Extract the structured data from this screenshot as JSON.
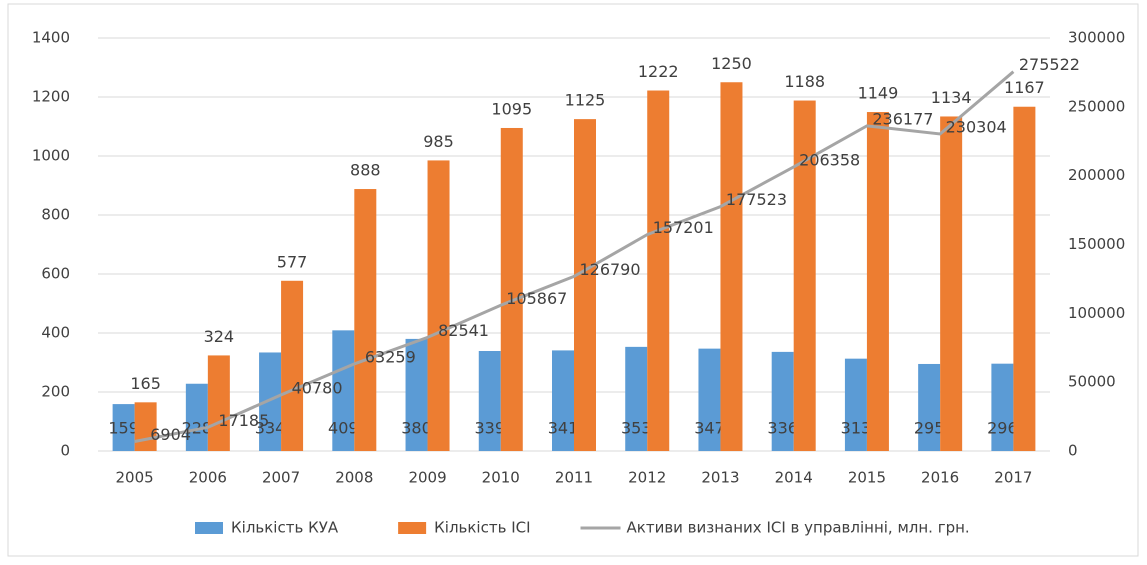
{
  "chart_data": {
    "type": "bar",
    "categories": [
      "2005",
      "2006",
      "2007",
      "2008",
      "2009",
      "2010",
      "2011",
      "2012",
      "2013",
      "2014",
      "2015",
      "2016",
      "2017"
    ],
    "series": [
      {
        "name": "Кількість КУА",
        "type": "bar",
        "color": "#5b9bd5",
        "values": [
          159,
          228,
          334,
          409,
          380,
          339,
          341,
          353,
          347,
          336,
          313,
          295,
          296
        ]
      },
      {
        "name": "Кількість ІСІ",
        "type": "bar",
        "color": "#ed7d31",
        "values": [
          165,
          324,
          577,
          888,
          985,
          1095,
          1125,
          1222,
          1250,
          1188,
          1149,
          1134,
          1167
        ]
      },
      {
        "name": "Активи визнаних ІСІ в управлінні, млн. грн.",
        "type": "line",
        "axis": "y2",
        "color": "#a5a5a5",
        "values": [
          6904,
          17185,
          40780,
          63259,
          82541,
          105867,
          126790,
          157201,
          177523,
          206358,
          236177,
          230304,
          275522
        ]
      }
    ],
    "ylim": [
      0,
      1400
    ],
    "yticks": [
      0,
      200,
      400,
      600,
      800,
      1000,
      1200,
      1400
    ],
    "y2lim": [
      0,
      300000
    ],
    "y2ticks": [
      0,
      50000,
      100000,
      150000,
      200000,
      250000,
      300000
    ],
    "grid": true,
    "legend": "bottom"
  }
}
